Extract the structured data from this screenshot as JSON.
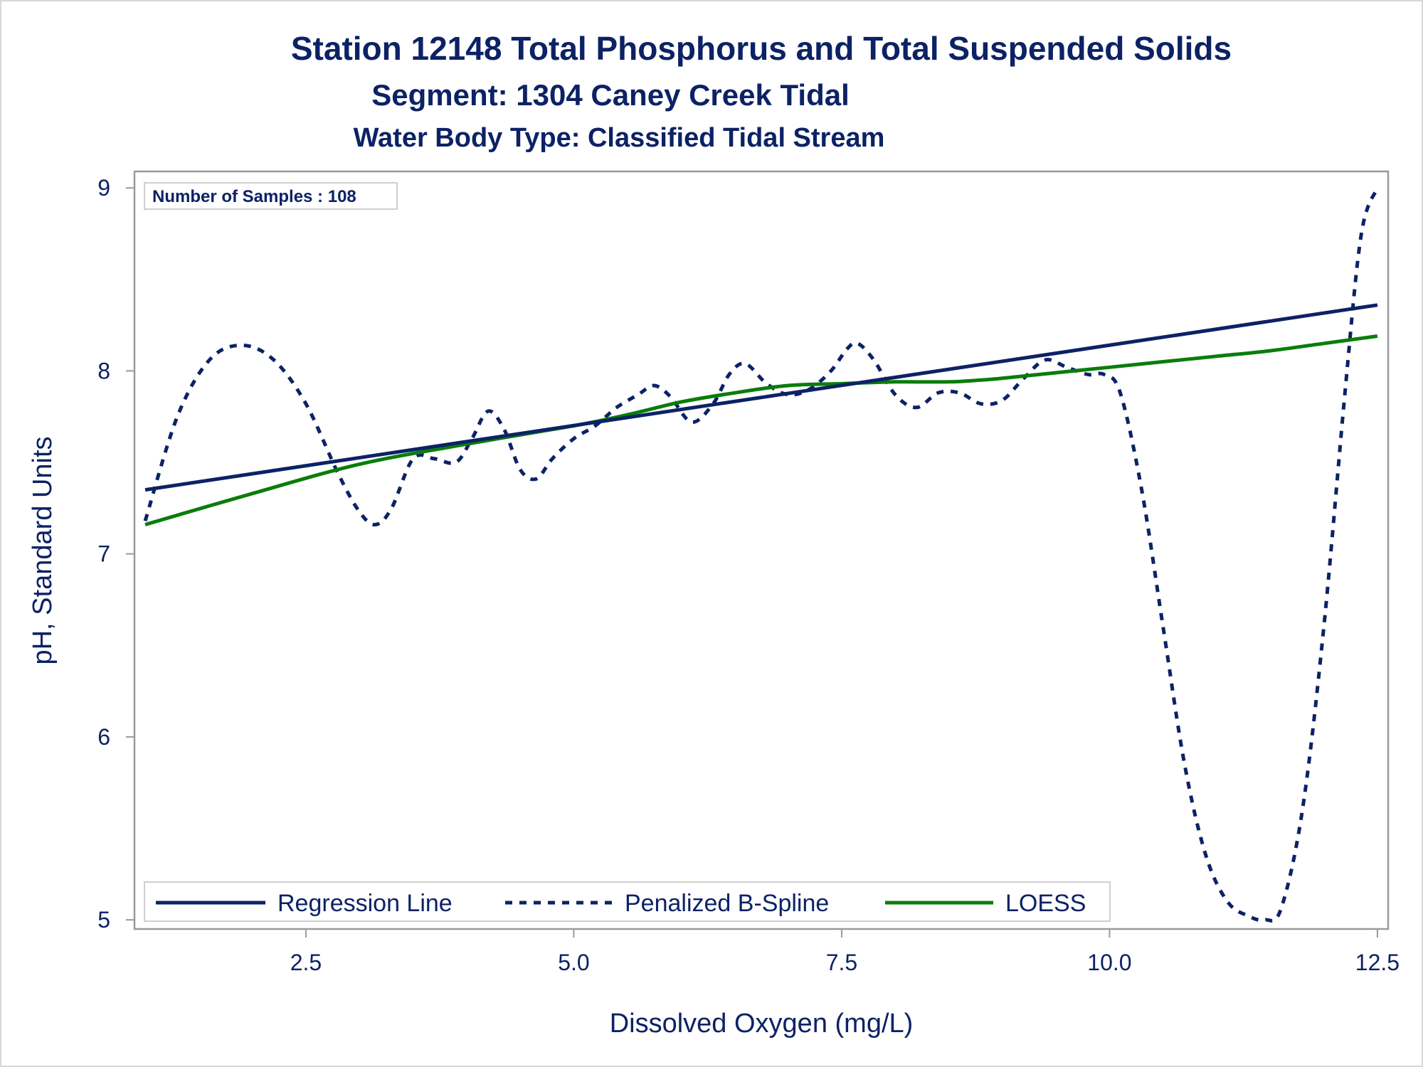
{
  "chart_data": {
    "type": "line",
    "title": "Station 12148  Total Phosphorus and Total Suspended Solids",
    "subtitle": "Segment: 1304  Caney Creek Tidal",
    "subtitle2": "Water Body Type: Classified Tidal Stream",
    "annotation": "Number of Samples : 108",
    "xlabel": "Dissolved Oxygen (mg/L)",
    "ylabel": "pH, Standard Units",
    "xlim": [
      0.9,
      12.6
    ],
    "ylim": [
      4.95,
      9.09
    ],
    "xticks": [
      2.5,
      5.0,
      7.5,
      10.0,
      12.5
    ],
    "xtick_labels": [
      "2.5",
      "5.0",
      "7.5",
      "10.0",
      "12.5"
    ],
    "yticks": [
      5,
      6,
      7,
      8,
      9
    ],
    "ytick_labels": [
      "5",
      "6",
      "7",
      "8",
      "9"
    ],
    "grid": false,
    "legend_position": "bottom-left",
    "colors": {
      "text": "#0c2265",
      "regression": "#0c2265",
      "spline": "#0c2265",
      "loess": "#0a7d0a",
      "axis": "#9a9a9a"
    },
    "series": [
      {
        "name": "Regression Line",
        "style": "solid",
        "x": [
          1.0,
          12.5
        ],
        "y": [
          7.35,
          8.36
        ]
      },
      {
        "name": "Penalized B-Spline",
        "style": "dashed",
        "x": [
          1.0,
          1.3,
          1.6,
          1.9,
          2.2,
          2.5,
          2.8,
          3.0,
          3.15,
          3.3,
          3.5,
          3.7,
          3.9,
          4.05,
          4.2,
          4.35,
          4.5,
          4.65,
          4.8,
          5.0,
          5.2,
          5.4,
          5.6,
          5.75,
          5.9,
          6.1,
          6.3,
          6.45,
          6.6,
          6.8,
          7.0,
          7.2,
          7.4,
          7.55,
          7.65,
          7.8,
          8.0,
          8.2,
          8.4,
          8.6,
          8.8,
          9.0,
          9.2,
          9.4,
          9.6,
          9.8,
          9.95,
          10.1,
          10.3,
          10.5,
          10.7,
          10.9,
          11.1,
          11.3,
          11.45,
          11.6,
          11.8,
          12.0,
          12.2,
          12.35,
          12.5
        ],
        "y": [
          7.18,
          7.75,
          8.06,
          8.14,
          8.06,
          7.82,
          7.44,
          7.23,
          7.16,
          7.25,
          7.52,
          7.52,
          7.5,
          7.63,
          7.78,
          7.68,
          7.46,
          7.41,
          7.52,
          7.63,
          7.7,
          7.8,
          7.87,
          7.92,
          7.86,
          7.72,
          7.82,
          7.98,
          8.04,
          7.93,
          7.87,
          7.9,
          8.0,
          8.12,
          8.15,
          8.06,
          7.87,
          7.8,
          7.88,
          7.88,
          7.82,
          7.84,
          7.96,
          8.06,
          8.02,
          7.98,
          7.98,
          7.88,
          7.35,
          6.6,
          5.85,
          5.35,
          5.1,
          5.02,
          5.0,
          5.06,
          5.6,
          6.6,
          7.9,
          8.75,
          9.0
        ]
      },
      {
        "name": "LOESS",
        "style": "solid",
        "x": [
          1.0,
          2.0,
          3.0,
          4.0,
          5.0,
          5.5,
          6.0,
          6.5,
          7.0,
          7.5,
          8.0,
          8.5,
          8.8,
          9.0,
          9.5,
          10.0,
          10.5,
          11.0,
          11.5,
          12.0,
          12.5
        ],
        "y": [
          7.16,
          7.33,
          7.49,
          7.6,
          7.7,
          7.76,
          7.83,
          7.88,
          7.92,
          7.93,
          7.94,
          7.94,
          7.95,
          7.96,
          7.99,
          8.02,
          8.05,
          8.08,
          8.11,
          8.15,
          8.19
        ]
      }
    ]
  }
}
